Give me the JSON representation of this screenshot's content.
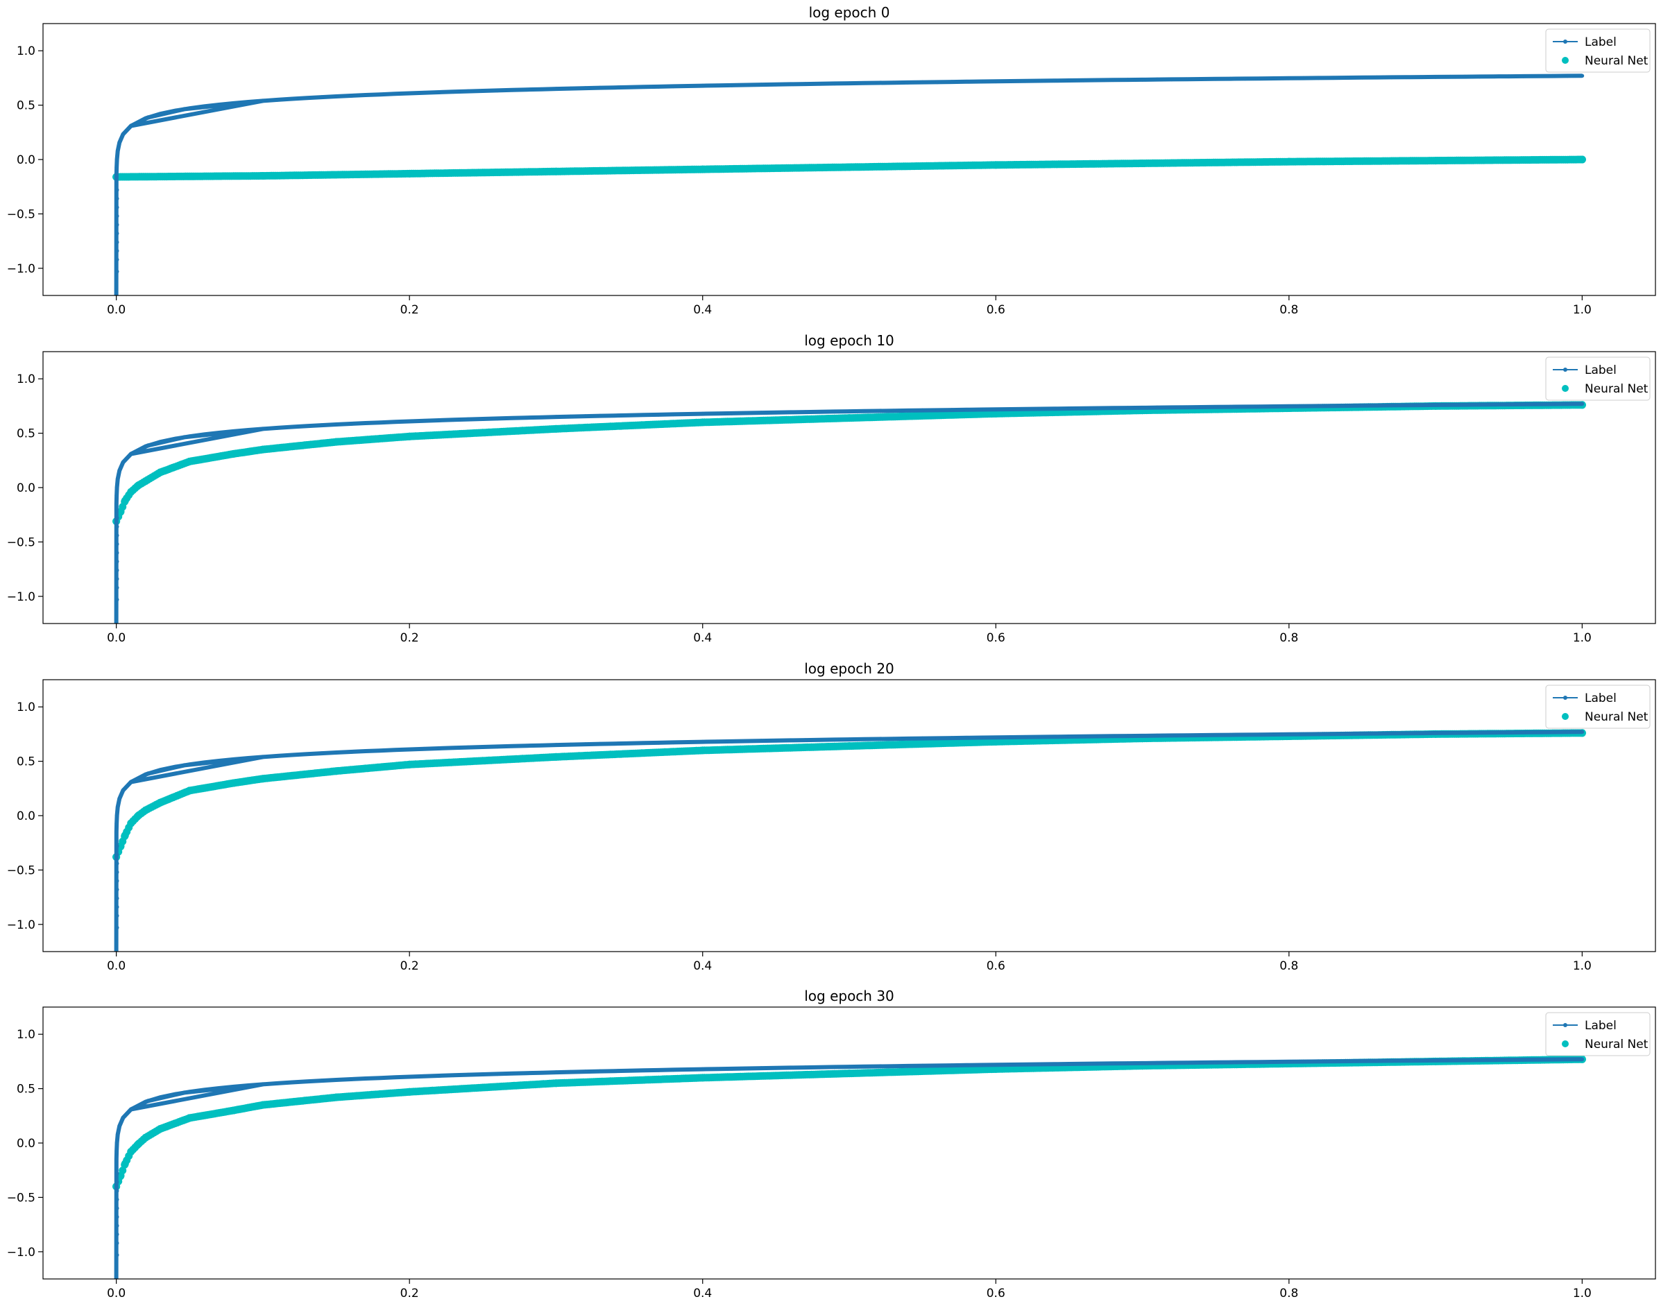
{
  "figure": {
    "background": "#ffffff",
    "label_color": "#1f77b4",
    "net_color": "#00bfbf"
  },
  "legend": {
    "label_entry": "Label",
    "net_entry": "Neural Net",
    "placement": "top-right"
  },
  "chart_data": [
    {
      "type": "scatter",
      "title": "log epoch 0",
      "xlim": [
        -0.05,
        1.05
      ],
      "ylim": [
        -1.25,
        1.25
      ],
      "xticks": [
        "0.0",
        "0.2",
        "0.4",
        "0.6",
        "0.8",
        "1.0"
      ],
      "yticks": [
        "−1.0",
        "−0.5",
        "0.0",
        "0.5",
        "1.0"
      ],
      "grid": false,
      "series": [
        {
          "name": "Label",
          "kind": "line-marker",
          "function": "0.1*ln(x)+0.77",
          "x_range": [
            0.0,
            1.0
          ],
          "y_min_shown": -1.25
        },
        {
          "name": "Neural Net",
          "kind": "scatter",
          "x": [
            0.0,
            0.1,
            0.2,
            0.3,
            0.4,
            0.5,
            0.6,
            0.7,
            0.8,
            0.9,
            1.0
          ],
          "y": [
            -0.16,
            -0.15,
            -0.13,
            -0.11,
            -0.09,
            -0.07,
            -0.05,
            -0.035,
            -0.02,
            -0.01,
            0.0
          ]
        }
      ]
    },
    {
      "type": "scatter",
      "title": "log epoch 10",
      "xlim": [
        -0.05,
        1.05
      ],
      "ylim": [
        -1.25,
        1.25
      ],
      "xticks": [
        "0.0",
        "0.2",
        "0.4",
        "0.6",
        "0.8",
        "1.0"
      ],
      "yticks": [
        "−1.0",
        "−0.5",
        "0.0",
        "0.5",
        "1.0"
      ],
      "grid": false,
      "series": [
        {
          "name": "Label",
          "kind": "line-marker",
          "function": "0.1*ln(x)+0.77",
          "x_range": [
            0.0,
            1.0
          ],
          "y_min_shown": -1.25
        },
        {
          "name": "Neural Net",
          "kind": "scatter",
          "x": [
            0.0,
            0.003,
            0.006,
            0.01,
            0.015,
            0.02,
            0.03,
            0.05,
            0.08,
            0.1,
            0.15,
            0.2,
            0.3,
            0.4,
            0.5,
            0.6,
            0.7,
            0.8,
            0.9,
            1.0
          ],
          "y": [
            -0.31,
            -0.22,
            -0.12,
            -0.04,
            0.02,
            0.06,
            0.14,
            0.24,
            0.31,
            0.35,
            0.42,
            0.47,
            0.54,
            0.6,
            0.64,
            0.68,
            0.71,
            0.73,
            0.75,
            0.76
          ]
        }
      ]
    },
    {
      "type": "scatter",
      "title": "log epoch 20",
      "xlim": [
        -0.05,
        1.05
      ],
      "ylim": [
        -1.25,
        1.25
      ],
      "xticks": [
        "0.0",
        "0.2",
        "0.4",
        "0.6",
        "0.8",
        "1.0"
      ],
      "yticks": [
        "−1.0",
        "−0.5",
        "0.0",
        "0.5",
        "1.0"
      ],
      "grid": false,
      "series": [
        {
          "name": "Label",
          "kind": "line-marker",
          "function": "0.1*ln(x)+0.77",
          "x_range": [
            0.0,
            1.0
          ],
          "y_min_shown": -1.25
        },
        {
          "name": "Neural Net",
          "kind": "scatter",
          "x": [
            0.0,
            0.003,
            0.006,
            0.01,
            0.015,
            0.02,
            0.03,
            0.05,
            0.08,
            0.1,
            0.15,
            0.2,
            0.3,
            0.4,
            0.5,
            0.6,
            0.7,
            0.8,
            0.9,
            1.0
          ],
          "y": [
            -0.38,
            -0.28,
            -0.18,
            -0.07,
            0.0,
            0.05,
            0.12,
            0.23,
            0.3,
            0.34,
            0.41,
            0.47,
            0.54,
            0.6,
            0.64,
            0.68,
            0.71,
            0.73,
            0.75,
            0.76
          ]
        }
      ]
    },
    {
      "type": "scatter",
      "title": "log epoch 30",
      "xlim": [
        -0.05,
        1.05
      ],
      "ylim": [
        -1.25,
        1.25
      ],
      "xticks": [
        "0.0",
        "0.2",
        "0.4",
        "0.6",
        "0.8",
        "1.0"
      ],
      "yticks": [
        "−1.0",
        "−0.5",
        "0.0",
        "0.5",
        "1.0"
      ],
      "grid": false,
      "series": [
        {
          "name": "Label",
          "kind": "line-marker",
          "function": "0.1*ln(x)+0.77",
          "x_range": [
            0.0,
            1.0
          ],
          "y_min_shown": -1.25
        },
        {
          "name": "Neural Net",
          "kind": "scatter",
          "x": [
            0.0,
            0.003,
            0.006,
            0.01,
            0.015,
            0.02,
            0.03,
            0.05,
            0.08,
            0.1,
            0.15,
            0.2,
            0.3,
            0.4,
            0.5,
            0.6,
            0.7,
            0.8,
            0.9,
            1.0
          ],
          "y": [
            -0.4,
            -0.3,
            -0.19,
            -0.08,
            -0.01,
            0.05,
            0.13,
            0.23,
            0.3,
            0.35,
            0.42,
            0.47,
            0.55,
            0.6,
            0.64,
            0.68,
            0.71,
            0.73,
            0.75,
            0.77
          ]
        }
      ]
    }
  ]
}
